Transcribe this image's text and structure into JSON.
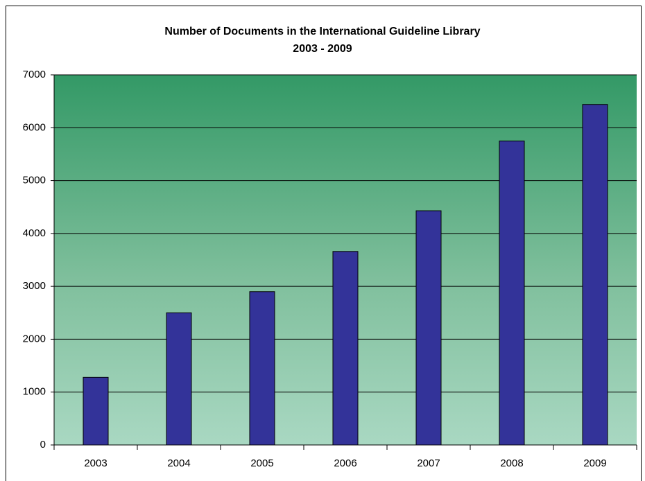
{
  "chart_data": {
    "type": "bar",
    "title": "Number of Documents in the International Guideline Library",
    "subtitle": "2003 - 2009",
    "categories": [
      "2003",
      "2004",
      "2005",
      "2006",
      "2007",
      "2008",
      "2009"
    ],
    "values": [
      1280,
      2500,
      2900,
      3660,
      4430,
      5750,
      6440
    ],
    "color": "#333399",
    "ylim": [
      0,
      7000
    ],
    "yticks": [
      0,
      1000,
      2000,
      3000,
      4000,
      5000,
      6000,
      7000
    ],
    "grid": true
  }
}
